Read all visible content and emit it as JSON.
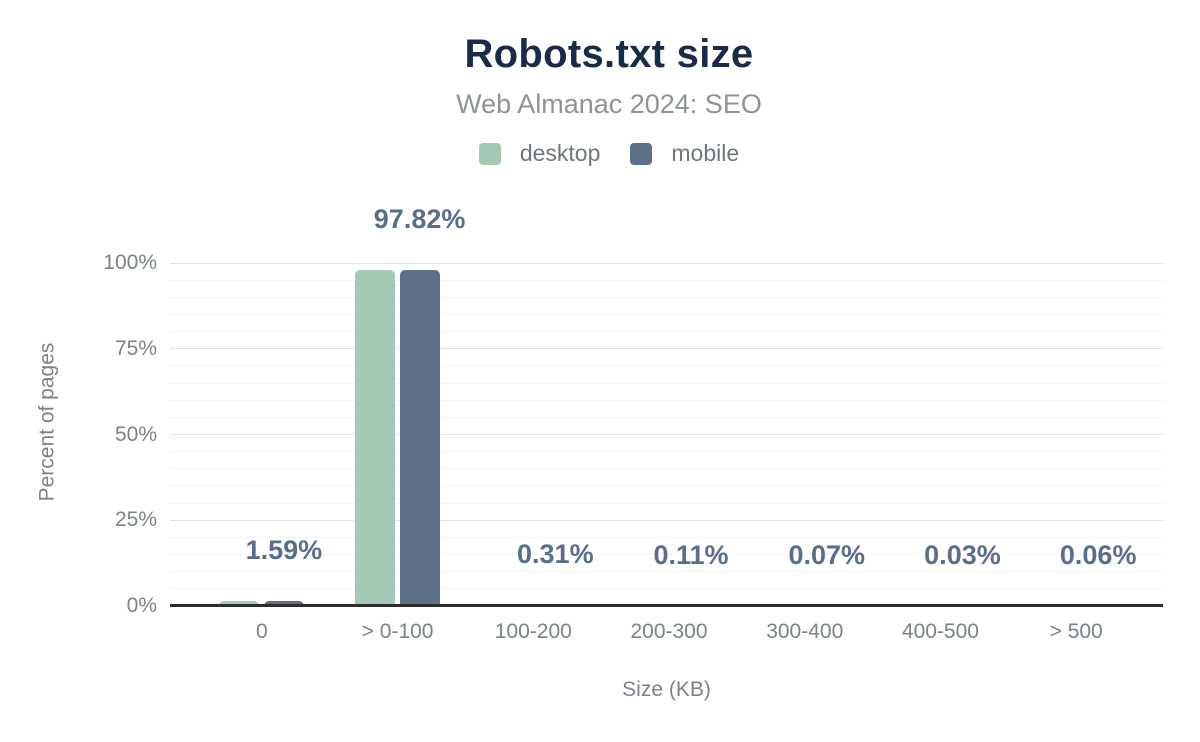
{
  "header": {
    "title": "Robots.txt size",
    "subtitle": "Web Almanac 2024: SEO"
  },
  "legend": {
    "items": [
      {
        "label": "desktop",
        "color": "#a5c9b4"
      },
      {
        "label": "mobile",
        "color": "#5e7189"
      }
    ]
  },
  "colors": {
    "title": "#1a2b49",
    "subtitle": "#8e939b",
    "legend_text": "#6f767f",
    "axis_text": "#7b8289",
    "data_label": "#596d8d",
    "axis_line": "#2d2d2d",
    "grid_major": "#e3e4e7",
    "grid_minor": "#f2f3f5",
    "desktop_bar": "#a5c9b4",
    "mobile_bar": "#5e7189"
  },
  "chart_data": {
    "type": "bar",
    "title": "Robots.txt size",
    "subtitle": "Web Almanac 2024: SEO",
    "categories": [
      "0",
      "> 0-100",
      "100-200",
      "200-300",
      "300-400",
      "400-500",
      "> 500"
    ],
    "series": [
      {
        "name": "desktop",
        "color": "#a5c9b4",
        "values": [
          1.59,
          97.82,
          0.31,
          0.11,
          0.07,
          0.03,
          0.06
        ]
      },
      {
        "name": "mobile",
        "color": "#5e7189",
        "values": [
          1.59,
          97.82,
          0.31,
          0.11,
          0.07,
          0.03,
          0.06
        ]
      }
    ],
    "data_labels": [
      "1.59%",
      "97.82%",
      "0.31%",
      "0.11%",
      "0.07%",
      "0.03%",
      "0.06%"
    ],
    "xlabel": "Size (KB)",
    "ylabel": "Percent of pages",
    "ylim": [
      0,
      100
    ],
    "yticks": [
      0,
      25,
      50,
      75,
      100
    ],
    "ytick_labels": [
      "0%",
      "25%",
      "50%",
      "75%",
      "100%"
    ],
    "grid": {
      "major_interval": 25,
      "minor_interval": 5,
      "vertical": false
    },
    "legend_position": "top"
  }
}
